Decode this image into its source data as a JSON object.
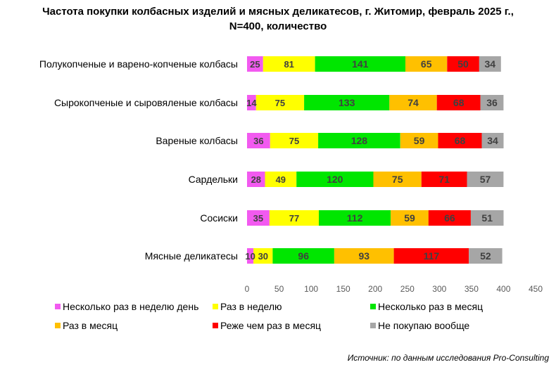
{
  "chart_data": {
    "type": "bar",
    "orientation": "horizontal",
    "stacked": true,
    "title_line1": "Частота покупки колбасных изделий и мясных деликатесов, г. Житомир, февраль 2025 г.,",
    "title_line2": "N=400, количество",
    "categories": [
      "Полукопченые и варено-копченые колбасы",
      "Сырокопченые и сыровяленые колбасы",
      "Вареные колбасы",
      "Сардельки",
      "Сосиски",
      "Мясные деликатесы"
    ],
    "series": [
      {
        "name": "Несколько раз в неделю день",
        "color": "#f25af0",
        "values": [
          25,
          14,
          36,
          28,
          35,
          10
        ]
      },
      {
        "name": "Раз в неделю",
        "color": "#ffff00",
        "values": [
          81,
          75,
          75,
          49,
          77,
          30
        ]
      },
      {
        "name": "Несколько раз в месяц",
        "color": "#00e600",
        "values": [
          141,
          133,
          128,
          120,
          112,
          96
        ]
      },
      {
        "name": "Раз в месяц",
        "color": "#ffc000",
        "values": [
          65,
          74,
          59,
          75,
          59,
          93
        ]
      },
      {
        "name": "Реже чем раз в месяц",
        "color": "#ff0000",
        "values": [
          50,
          68,
          68,
          71,
          66,
          117
        ]
      },
      {
        "name": "Не покупаю вообще",
        "color": "#a6a6a6",
        "values": [
          34,
          36,
          34,
          57,
          51,
          52
        ]
      }
    ],
    "xlim": [
      0,
      450
    ],
    "xticks": [
      "0",
      "50",
      "100",
      "150",
      "200",
      "250",
      "300",
      "350",
      "400",
      "450"
    ],
    "grid": false,
    "legend_position": "bottom"
  },
  "source": "Источник: по данным исследования Pro-Consulting"
}
